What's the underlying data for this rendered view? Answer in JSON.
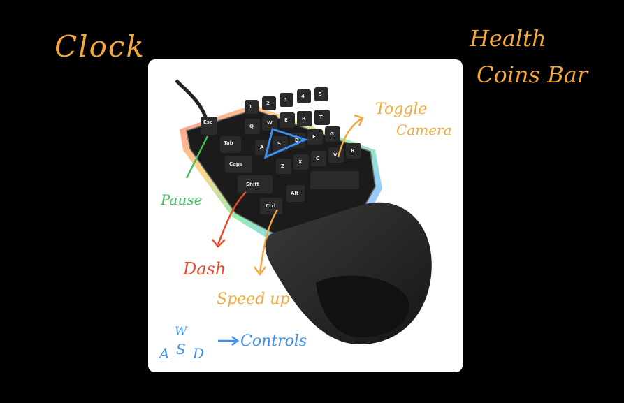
{
  "notes": {
    "top_left": "Clock",
    "top_right_line1": "Health",
    "top_right_line2": "Coins Bar"
  },
  "annotations": {
    "pause": "Pause",
    "dash": "Dash",
    "speed_up": "Speed up",
    "toggle_line1": "Toggle",
    "toggle_line2": "Camera",
    "w": "W",
    "a": "A",
    "s": "S",
    "d": "D",
    "controls": "Controls"
  },
  "keys": {
    "esc": "Esc",
    "tab": "Tab",
    "caps": "Caps",
    "shift": "Shift",
    "ctrl": "Ctrl",
    "alt": "Alt",
    "q": "Q",
    "w": "W",
    "e": "E",
    "r": "R",
    "t": "T",
    "a": "A",
    "s": "S",
    "d": "D",
    "f": "F",
    "g": "G",
    "z": "Z",
    "x": "X",
    "c": "C",
    "v": "V",
    "b": "B",
    "n1": "1",
    "n2": "2",
    "n3": "3",
    "n4": "4",
    "n5": "5"
  },
  "colors": {
    "annotation_orange": "#f2a93b",
    "annotation_green": "#3fbf5a",
    "annotation_red": "#ea4a2a",
    "annotation_blue": "#3a8ff0",
    "background": "#000000",
    "card": "#ffffff"
  }
}
